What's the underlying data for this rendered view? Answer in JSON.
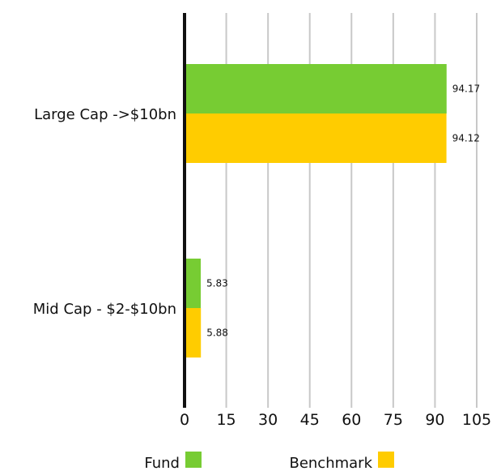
{
  "chart_data": {
    "type": "bar",
    "orientation": "horizontal",
    "categories": [
      "Large Cap ->$10bn",
      "Mid Cap - $2-$10bn"
    ],
    "series": [
      {
        "name": "Fund",
        "values": [
          94.17,
          5.83
        ],
        "labels": [
          "94.17",
          "5.83"
        ],
        "color": "#77cc33"
      },
      {
        "name": "Benchmark",
        "values": [
          94.12,
          5.88
        ],
        "labels": [
          "94.12",
          "5.88"
        ],
        "color": "#ffcc00"
      }
    ],
    "xlim": [
      0,
      105
    ],
    "xticks": [
      0,
      15,
      30,
      45,
      60,
      75,
      90,
      105
    ],
    "xtick_labels": [
      "0",
      "15",
      "30",
      "45",
      "60",
      "75",
      "90",
      "105"
    ],
    "grid": true,
    "legend_position": "bottom"
  }
}
